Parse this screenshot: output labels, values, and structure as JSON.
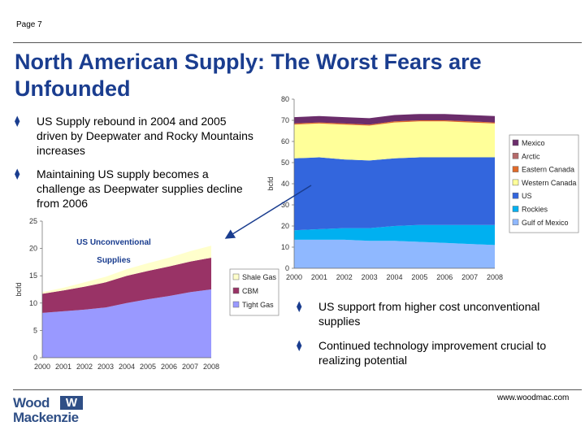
{
  "page": {
    "number": "Page 7",
    "url": "www.woodmac.com"
  },
  "title": "North American Supply:  The Worst Fears are Unfounded",
  "bullets": {
    "top": [
      "US Supply rebound in 2004 and 2005 driven by Deepwater and Rocky Mountains increases",
      "Maintaining US supply becomes a challenge as Deepwater supplies decline from 2006"
    ],
    "bottom": [
      "US support from higher cost unconventional supplies",
      "Continued technology improvement crucial to realizing potential"
    ]
  },
  "logo": {
    "line1": "Wood",
    "line2": "Mackenzie",
    "mark": "W"
  },
  "colors": {
    "title": "#1a3d8f",
    "mexico": "#6b2d6b",
    "arctic": "#b56a6a",
    "eastern_canada": "#e06a2a",
    "western_canada": "#ffff99",
    "us": "#3366dd",
    "rockies": "#00b0f0",
    "gulf_of_mexico": "#8fb8ff",
    "shale_gas": "#ffffcc",
    "cbm": "#993366",
    "tight_gas": "#9999ff"
  },
  "chart_data": [
    {
      "type": "area",
      "stacked": true,
      "x": [
        "2000",
        "2001",
        "2002",
        "2003",
        "2004",
        "2005",
        "2006",
        "2007",
        "2008"
      ],
      "ylabel": "bcfd",
      "ylim": [
        0,
        80
      ],
      "yticks": [
        "0",
        "10",
        "20",
        "30",
        "40",
        "50",
        "60",
        "70",
        "80"
      ],
      "legend_position": "right",
      "series": [
        {
          "name": "Gulf of Mexico",
          "color": "#8fb8ff",
          "values": [
            13.5,
            13.5,
            13.5,
            13,
            13,
            12.5,
            12,
            11.5,
            11
          ]
        },
        {
          "name": "Rockies",
          "color": "#00b0f0",
          "values": [
            4.5,
            5,
            5.5,
            6,
            7,
            8,
            8.5,
            9,
            9.5
          ]
        },
        {
          "name": "US",
          "color": "#3366dd",
          "values": [
            34,
            34,
            32.5,
            32,
            32,
            32,
            32,
            32,
            32
          ]
        },
        {
          "name": "Western Canada",
          "color": "#ffff99",
          "values": [
            16,
            16,
            16.5,
            16.5,
            17,
            17,
            17,
            16.5,
            16
          ]
        },
        {
          "name": "Eastern Canada",
          "color": "#e06a2a",
          "values": [
            0.5,
            0.5,
            0.5,
            0.5,
            0.5,
            0.5,
            0.5,
            0.5,
            0.5
          ]
        },
        {
          "name": "Arctic",
          "color": "#b56a6a",
          "values": [
            0,
            0,
            0,
            0,
            0,
            0,
            0,
            0,
            0
          ]
        },
        {
          "name": "Mexico",
          "color": "#6b2d6b",
          "values": [
            3,
            3,
            3,
            3,
            3,
            3,
            3,
            3,
            3
          ]
        }
      ],
      "legend_order": [
        "Mexico",
        "Arctic",
        "Eastern Canada",
        "Western Canada",
        "US",
        "Rockies",
        "Gulf of Mexico"
      ]
    },
    {
      "type": "area",
      "stacked": true,
      "x": [
        "2000",
        "2001",
        "2002",
        "2003",
        "2004",
        "2005",
        "2006",
        "2007",
        "2008"
      ],
      "ylabel": "bcfd",
      "ylim": [
        0,
        25
      ],
      "yticks": [
        "0",
        "5",
        "10",
        "15",
        "20",
        "25"
      ],
      "annotation": [
        "US Unconventional",
        "Supplies"
      ],
      "legend_position": "right",
      "series": [
        {
          "name": "Tight Gas",
          "color": "#9999ff",
          "values": [
            8.2,
            8.5,
            8.8,
            9.2,
            10,
            10.7,
            11.3,
            12,
            12.5
          ]
        },
        {
          "name": "CBM",
          "color": "#993366",
          "values": [
            3.5,
            3.8,
            4.2,
            4.6,
            5,
            5.2,
            5.4,
            5.6,
            5.8
          ]
        },
        {
          "name": "Shale Gas",
          "color": "#ffffcc",
          "values": [
            0.3,
            0.5,
            0.8,
            1,
            1.2,
            1.4,
            1.6,
            1.9,
            2.2
          ]
        }
      ],
      "legend_order": [
        "Shale Gas",
        "CBM",
        "Tight Gas"
      ]
    }
  ]
}
